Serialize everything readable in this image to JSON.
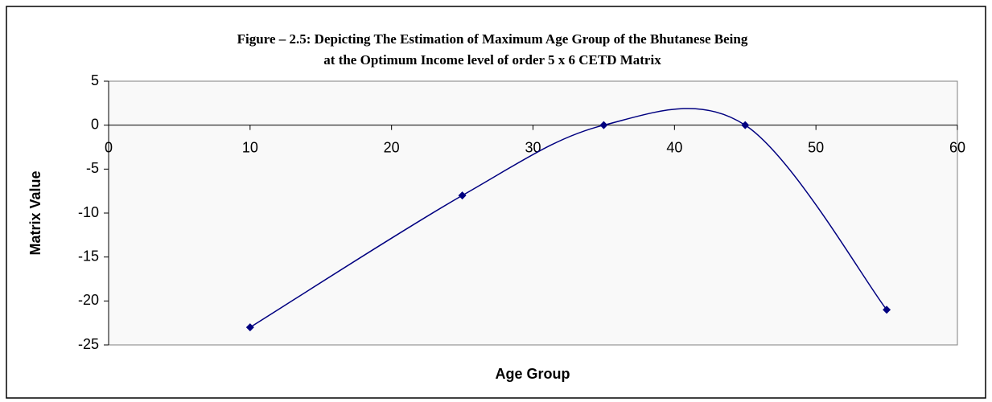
{
  "chart_data": {
    "type": "scatter",
    "title": [
      "Figure – 2.5: Depicting The Estimation of Maximum Age Group of the Bhutanese Being",
      "at the Optimum Income level of order 5 x 6 CETD Matrix"
    ],
    "x_label": "Age Group",
    "y_label": "Matrix Value",
    "x": [
      10,
      25,
      35,
      45,
      55
    ],
    "series": [
      {
        "name": "Matrix Value",
        "color": "#000080",
        "values": [
          -23,
          -8,
          0,
          0,
          -21
        ]
      }
    ],
    "smooth": true,
    "xlim": [
      0,
      60
    ],
    "xticks": [
      0,
      10,
      20,
      30,
      40,
      50,
      60
    ],
    "ylim": [
      -25,
      5
    ],
    "yticks": [
      5,
      0,
      -5,
      -10,
      -15,
      -20,
      -25
    ]
  }
}
